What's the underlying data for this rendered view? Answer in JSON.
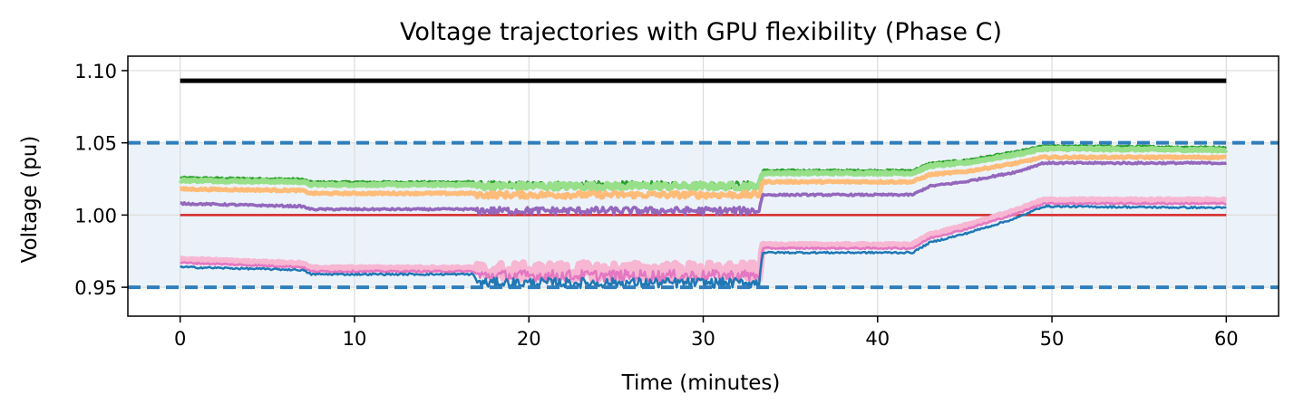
{
  "chart_data": {
    "type": "line",
    "title": "Voltage trajectories with GPU flexibility (Phase C)",
    "xlabel": "Time (minutes)",
    "ylabel": "Voltage (pu)",
    "xlim": [
      -3,
      63
    ],
    "ylim": [
      0.93,
      1.11
    ],
    "xticks": [
      0,
      10,
      20,
      30,
      40,
      50,
      60
    ],
    "yticks": [
      0.95,
      1.0,
      1.05,
      1.1
    ],
    "xtick_labels": [
      "0",
      "10",
      "20",
      "30",
      "40",
      "50",
      "60"
    ],
    "ytick_labels": [
      "0.95",
      "1.00",
      "1.05",
      "1.10"
    ],
    "grid": true,
    "legend": "none",
    "band": {
      "y0": 0.95,
      "y1": 1.05,
      "color": "#d7e6f4"
    },
    "limit_lines": [
      {
        "y": 1.05,
        "style": "dashed",
        "color": "#2f7ebc"
      },
      {
        "y": 0.95,
        "style": "dashed",
        "color": "#2f7ebc"
      }
    ],
    "series": [
      {
        "color": "#000000",
        "width": 5,
        "x": [
          0,
          60
        ],
        "values": [
          1.093,
          1.093
        ]
      },
      {
        "color": "#d62728",
        "width": 2.5,
        "x": [
          0,
          60
        ],
        "values": [
          1.0,
          1.0
        ]
      },
      {
        "color": "#2ca02c",
        "width": 2.5,
        "noise_segment": [
          17,
          33.3
        ],
        "amp": 0.005,
        "x": [
          0,
          7,
          7.5,
          16.8,
          17.1,
          33.2,
          33.4,
          42,
          43,
          45,
          48,
          49.5,
          60
        ],
        "values": [
          1.026,
          1.025,
          1.023,
          1.023,
          1.021,
          1.021,
          1.031,
          1.031,
          1.036,
          1.038,
          1.044,
          1.048,
          1.047
        ]
      },
      {
        "color": "#98df8a",
        "width": 6,
        "noise_segment": [
          17,
          33.3
        ],
        "amp": 0.004,
        "x": [
          0,
          7,
          7.5,
          16.8,
          17.1,
          33.2,
          33.4,
          42,
          43,
          45,
          48,
          49.5,
          60
        ],
        "values": [
          1.024,
          1.023,
          1.021,
          1.021,
          1.02,
          1.02,
          1.029,
          1.029,
          1.034,
          1.036,
          1.042,
          1.046,
          1.045
        ]
      },
      {
        "color": "#ffbb78",
        "width": 5,
        "noise_segment": [
          17,
          33.3
        ],
        "amp": 0.004,
        "x": [
          0,
          7,
          7.5,
          16.8,
          17.1,
          33.2,
          33.4,
          42,
          43,
          45,
          48,
          49.5,
          60
        ],
        "values": [
          1.018,
          1.017,
          1.015,
          1.015,
          1.014,
          1.014,
          1.023,
          1.023,
          1.028,
          1.03,
          1.036,
          1.04,
          1.04
        ]
      },
      {
        "color": "#9467bd",
        "width": 3.5,
        "noise_segment": [
          17,
          33.3
        ],
        "amp": 0.005,
        "x": [
          0,
          7,
          7.5,
          16.8,
          17.1,
          33.2,
          33.4,
          42,
          43,
          45,
          48,
          49.5,
          60
        ],
        "values": [
          1.008,
          1.006,
          1.004,
          1.004,
          1.003,
          1.003,
          1.014,
          1.014,
          1.02,
          1.023,
          1.03,
          1.036,
          1.036
        ]
      },
      {
        "color": "#f7b6d2",
        "width": 8,
        "noise_segment": [
          17,
          33.3
        ],
        "amp": 0.012,
        "x": [
          0,
          7,
          7.5,
          16.8,
          17.1,
          33.2,
          33.4,
          42,
          43,
          45,
          48,
          49.5,
          60
        ],
        "values": [
          0.969,
          0.966,
          0.963,
          0.963,
          0.961,
          0.961,
          0.979,
          0.979,
          0.986,
          0.992,
          1.003,
          1.01,
          1.01
        ]
      },
      {
        "color": "#e377c2",
        "width": 2.5,
        "noise_segment": [
          17,
          33.3
        ],
        "amp": 0.008,
        "x": [
          0,
          7,
          7.5,
          16.8,
          17.1,
          33.2,
          33.4,
          42,
          43,
          45,
          48,
          49.5,
          60
        ],
        "values": [
          0.967,
          0.964,
          0.961,
          0.961,
          0.958,
          0.958,
          0.977,
          0.977,
          0.984,
          0.99,
          1.001,
          1.008,
          1.008
        ]
      },
      {
        "color": "#1f77b4",
        "width": 2.5,
        "noise_segment": [
          17,
          33.3
        ],
        "amp": 0.007,
        "x": [
          0,
          7,
          7.5,
          16.8,
          17.1,
          33.2,
          33.4,
          42,
          43,
          45,
          48,
          49.5,
          60
        ],
        "values": [
          0.964,
          0.962,
          0.959,
          0.959,
          0.953,
          0.953,
          0.974,
          0.974,
          0.981,
          0.987,
          0.998,
          1.006,
          1.005
        ]
      }
    ]
  }
}
